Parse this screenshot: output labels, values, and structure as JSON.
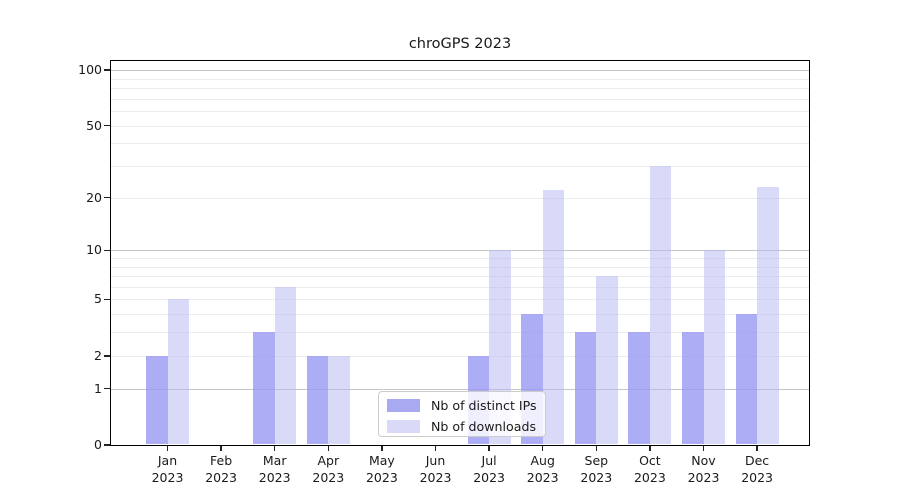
{
  "chart_data": {
    "type": "bar",
    "title": "chroGPS 2023",
    "categories": [
      "Jan",
      "Feb",
      "Mar",
      "Apr",
      "May",
      "Jun",
      "Jul",
      "Aug",
      "Sep",
      "Oct",
      "Nov",
      "Dec"
    ],
    "year_label": "2023",
    "series": [
      {
        "name": "Nb of distinct IPs",
        "color": "#a9a9f2",
        "fill": "rgba(150,150,242,0.78)",
        "values": [
          2,
          0,
          3,
          2,
          0,
          0,
          2,
          4,
          3,
          3,
          3,
          4
        ]
      },
      {
        "name": "Nb of downloads",
        "color": "#dadaf8",
        "fill": "rgba(180,180,242,0.5)",
        "values": [
          5,
          0,
          6,
          2,
          0,
          0,
          10,
          22,
          7,
          30,
          10,
          23
        ]
      }
    ],
    "yscale": "log1p",
    "yticks": [
      0,
      1,
      2,
      5,
      10,
      20,
      50,
      100
    ],
    "ylim": [
      0,
      113
    ],
    "xlabel": "",
    "ylabel": "",
    "grid": true,
    "legend_position": "inside-bottom-center",
    "colors": {
      "major_gridline": "#c6c6c6",
      "minor_gridline": "#ececec",
      "axis": "#000000"
    }
  }
}
